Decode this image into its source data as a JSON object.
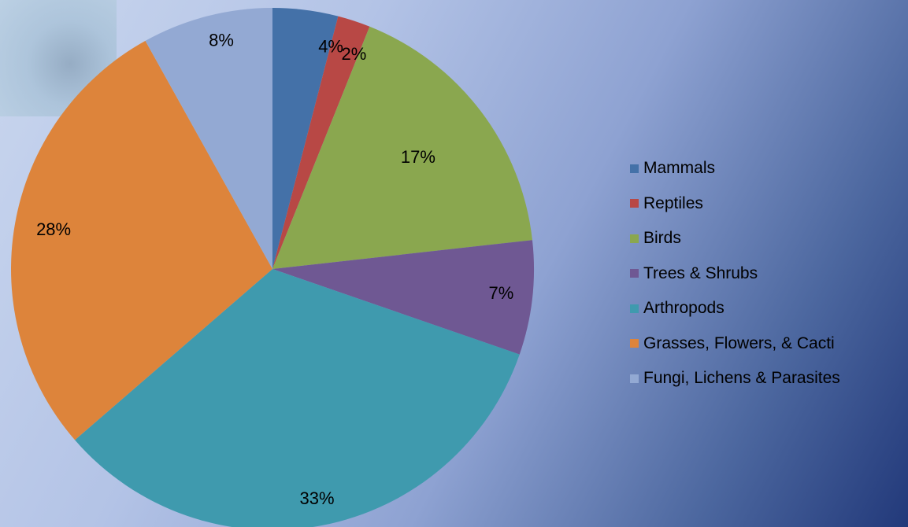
{
  "chart_data": {
    "type": "pie",
    "start_angle_deg": 0,
    "direction": "clockwise",
    "slices": [
      {
        "label": "Mammals",
        "value": 4,
        "data_label": "4%",
        "color": "#4471a8"
      },
      {
        "label": "Reptiles",
        "value": 2,
        "data_label": "2%",
        "color": "#b84845"
      },
      {
        "label": "Birds",
        "value": 17,
        "data_label": "17%",
        "color": "#8aa74f"
      },
      {
        "label": "Trees & Shrubs",
        "value": 7,
        "data_label": "7%",
        "color": "#6f5893"
      },
      {
        "label": "Arthropods",
        "value": 33,
        "data_label": "33%",
        "color": "#3f9aae"
      },
      {
        "label": "Grasses, Flowers, & Cacti",
        "value": 28,
        "data_label": "28%",
        "color": "#dd843b"
      },
      {
        "label": "Fungi, Lichens & Parasites",
        "value": 8,
        "data_label": "8%",
        "color": "#93a9d3"
      }
    ],
    "legend_position": "right"
  }
}
